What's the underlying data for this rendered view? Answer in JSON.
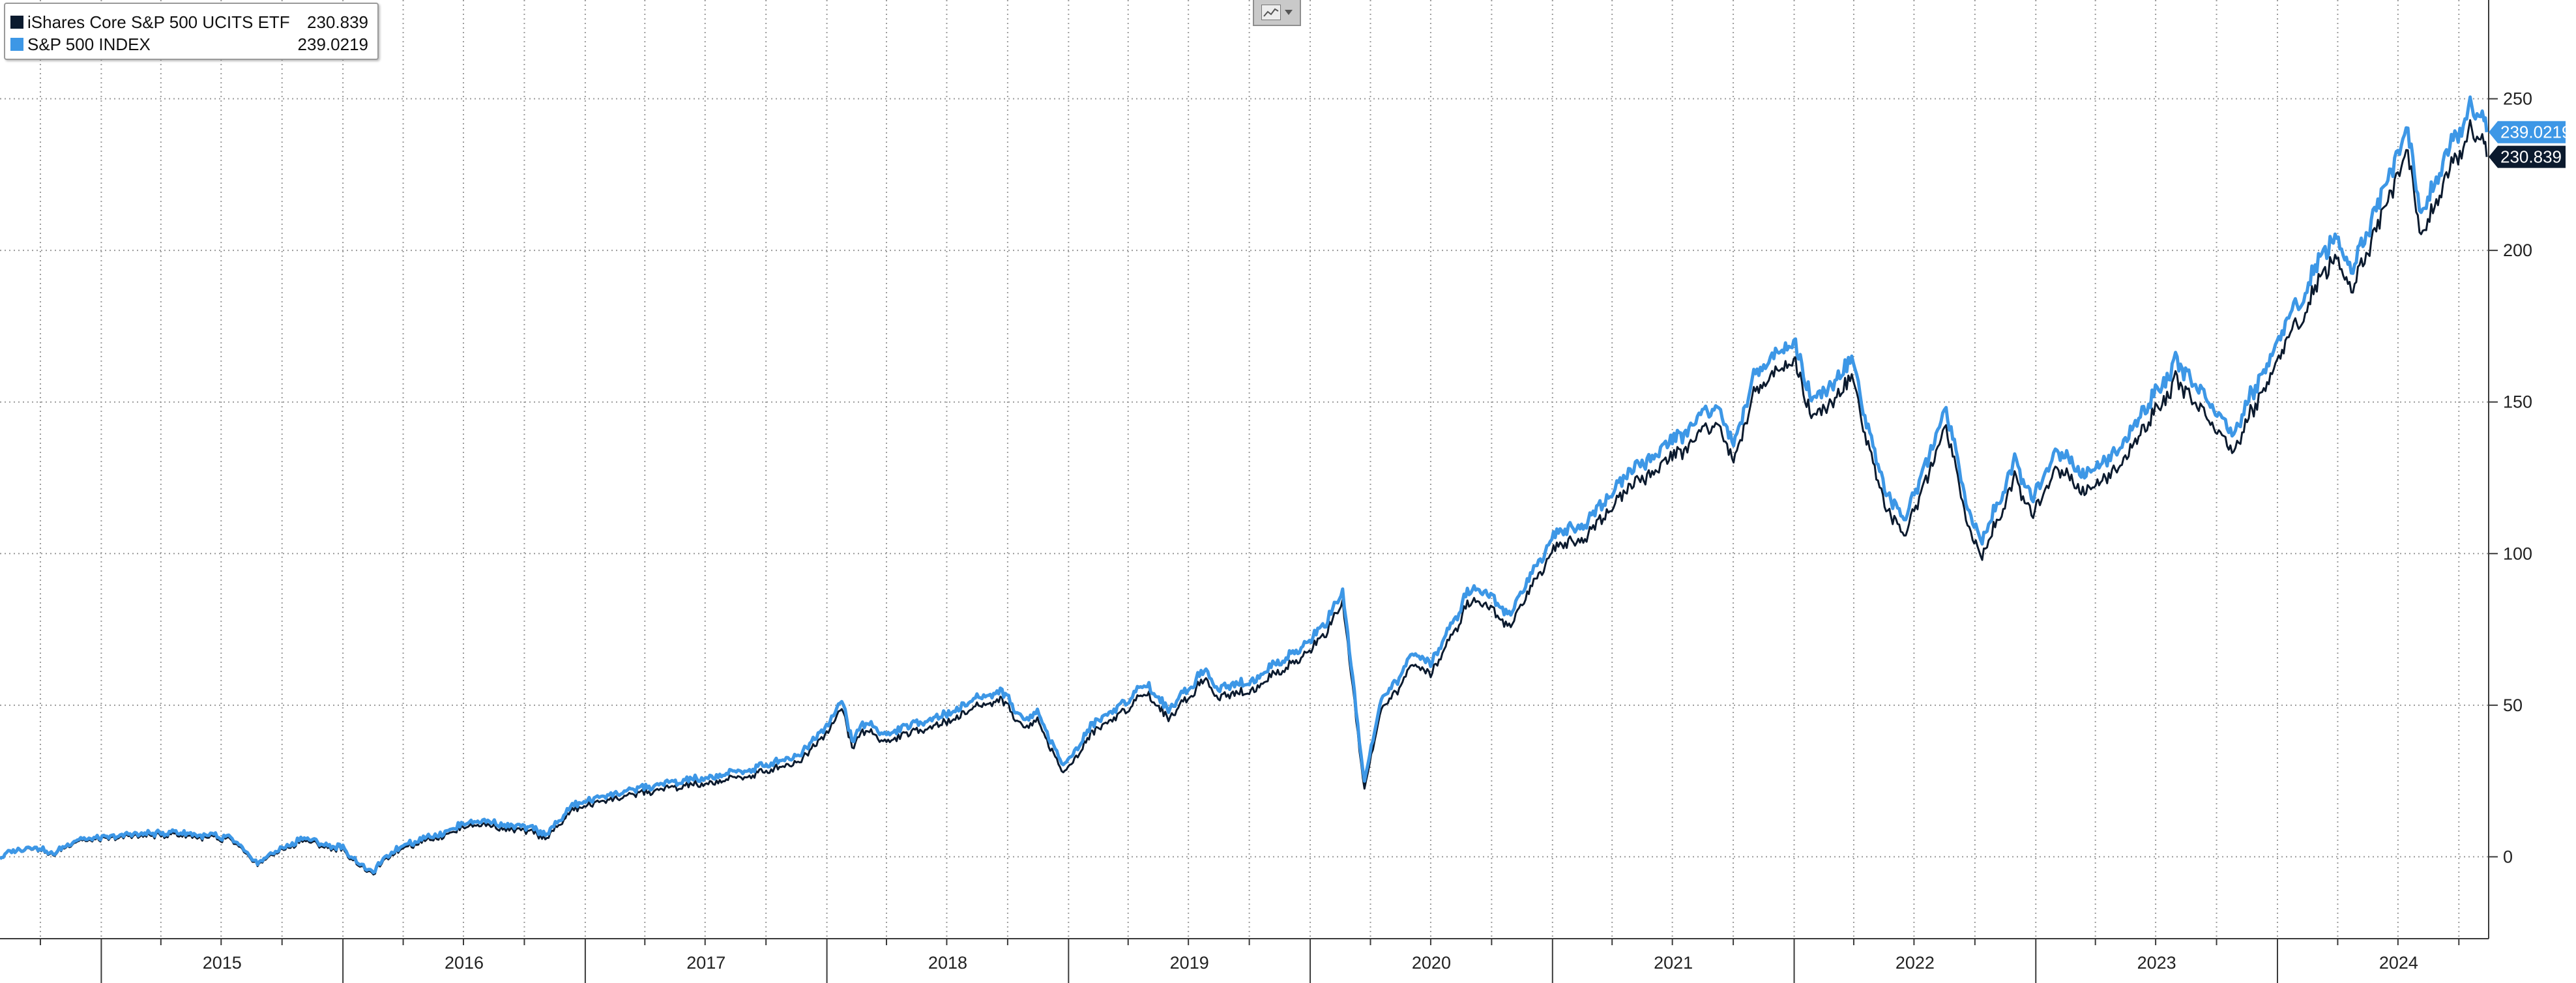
{
  "legend": {
    "items": [
      {
        "name": "iShares Core S&P 500 UCITS ETF",
        "value": "230.839",
        "color": "#0b1a2e"
      },
      {
        "name": "S&P 500 INDEX",
        "value": "239.0219",
        "color": "#3d97e6"
      }
    ]
  },
  "toolbar": {
    "chart_type_icon": "line-chart-icon",
    "dropdown_icon": "chevron-down-icon"
  },
  "chart_data": {
    "type": "line",
    "x_axis": {
      "type": "date",
      "range": [
        "2014-08-01",
        "2024-11-15"
      ],
      "tick_labels": [
        "2015",
        "2016",
        "2017",
        "2018",
        "2019",
        "2020",
        "2021",
        "2022",
        "2023",
        "2024"
      ]
    },
    "y_axis": {
      "side": "right",
      "range": [
        -27,
        280
      ],
      "ticks": [
        0,
        50,
        100,
        150,
        200,
        250
      ],
      "tick_labels": [
        "0",
        "50",
        "100",
        "150",
        "200",
        "250"
      ]
    },
    "grid": {
      "horizontal": true,
      "vertical": true,
      "style": "dotted"
    },
    "legend_position": "top-left",
    "series": [
      {
        "name": "S&P 500 INDEX",
        "color": "#3d97e6",
        "last_value_label": "239.0219",
        "points": [
          [
            "2014-08-01",
            0
          ],
          [
            "2014-09-15",
            4
          ],
          [
            "2014-10-15",
            1
          ],
          [
            "2014-12-01",
            6
          ],
          [
            "2015-02-01",
            7
          ],
          [
            "2015-05-01",
            8
          ],
          [
            "2015-07-15",
            6
          ],
          [
            "2015-08-25",
            -2
          ],
          [
            "2015-10-01",
            3
          ],
          [
            "2015-11-01",
            6
          ],
          [
            "2016-01-01",
            3
          ],
          [
            "2016-02-11",
            -5
          ],
          [
            "2016-04-01",
            4
          ],
          [
            "2016-06-01",
            8
          ],
          [
            "2016-07-15",
            12
          ],
          [
            "2016-10-01",
            10
          ],
          [
            "2016-11-04",
            8
          ],
          [
            "2016-12-15",
            17
          ],
          [
            "2017-03-01",
            22
          ],
          [
            "2017-06-01",
            25
          ],
          [
            "2017-09-01",
            28
          ],
          [
            "2017-12-01",
            35
          ],
          [
            "2018-01-26",
            52
          ],
          [
            "2018-02-08",
            38
          ],
          [
            "2018-03-01",
            45
          ],
          [
            "2018-04-01",
            40
          ],
          [
            "2018-06-01",
            45
          ],
          [
            "2018-09-20",
            55
          ],
          [
            "2018-10-25",
            45
          ],
          [
            "2018-11-15",
            48
          ],
          [
            "2018-12-24",
            30
          ],
          [
            "2019-02-01",
            42
          ],
          [
            "2019-04-30",
            57
          ],
          [
            "2019-06-01",
            48
          ],
          [
            "2019-07-25",
            62
          ],
          [
            "2019-08-15",
            55
          ],
          [
            "2019-10-01",
            58
          ],
          [
            "2019-12-31",
            70
          ],
          [
            "2020-02-19",
            86
          ],
          [
            "2020-03-23",
            25
          ],
          [
            "2020-04-15",
            50
          ],
          [
            "2020-06-08",
            68
          ],
          [
            "2020-07-01",
            64
          ],
          [
            "2020-09-02",
            90
          ],
          [
            "2020-10-30",
            80
          ],
          [
            "2020-12-31",
            105
          ],
          [
            "2021-03-01",
            112
          ],
          [
            "2021-05-01",
            128
          ],
          [
            "2021-07-01",
            137
          ],
          [
            "2021-09-02",
            148
          ],
          [
            "2021-10-04",
            137
          ],
          [
            "2021-11-01",
            160
          ],
          [
            "2022-01-03",
            170
          ],
          [
            "2022-01-27",
            150
          ],
          [
            "2022-03-29",
            163
          ],
          [
            "2022-05-20",
            120
          ],
          [
            "2022-06-16",
            110
          ],
          [
            "2022-08-16",
            148
          ],
          [
            "2022-09-30",
            108
          ],
          [
            "2022-10-12",
            105
          ],
          [
            "2022-11-30",
            130
          ],
          [
            "2022-12-28",
            118
          ],
          [
            "2023-02-02",
            135
          ],
          [
            "2023-03-13",
            125
          ],
          [
            "2023-05-01",
            133
          ],
          [
            "2023-07-31",
            163
          ],
          [
            "2023-10-27",
            140
          ],
          [
            "2023-12-29",
            170
          ],
          [
            "2024-03-28",
            205
          ],
          [
            "2024-04-19",
            193
          ],
          [
            "2024-07-16",
            240
          ],
          [
            "2024-08-05",
            213
          ],
          [
            "2024-09-30",
            238
          ],
          [
            "2024-10-18",
            250
          ],
          [
            "2024-11-08",
            245
          ],
          [
            "2024-11-12",
            239
          ]
        ]
      },
      {
        "name": "iShares Core S&P 500 UCITS ETF",
        "color": "#0b1a2e",
        "last_value_label": "230.839",
        "points": [
          [
            "2014-08-01",
            0
          ],
          [
            "2014-09-15",
            3.7
          ],
          [
            "2014-10-15",
            0.6
          ],
          [
            "2014-12-01",
            5.5
          ],
          [
            "2015-02-01",
            6.4
          ],
          [
            "2015-05-01",
            7.2
          ],
          [
            "2015-07-15",
            5.3
          ],
          [
            "2015-08-25",
            -2.5
          ],
          [
            "2015-10-01",
            2.4
          ],
          [
            "2015-11-01",
            5.2
          ],
          [
            "2016-01-01",
            2.3
          ],
          [
            "2016-02-11",
            -5.6
          ],
          [
            "2016-04-01",
            3.2
          ],
          [
            "2016-06-01",
            7
          ],
          [
            "2016-07-15",
            10.8
          ],
          [
            "2016-10-01",
            8.7
          ],
          [
            "2016-11-04",
            6.7
          ],
          [
            "2016-12-15",
            15.5
          ],
          [
            "2017-03-01",
            20.4
          ],
          [
            "2017-06-01",
            23.2
          ],
          [
            "2017-09-01",
            26
          ],
          [
            "2017-12-01",
            32.8
          ],
          [
            "2018-01-26",
            49.5
          ],
          [
            "2018-02-08",
            35.8
          ],
          [
            "2018-03-01",
            42.5
          ],
          [
            "2018-04-01",
            37.6
          ],
          [
            "2018-06-01",
            42.4
          ],
          [
            "2018-09-20",
            52.2
          ],
          [
            "2018-10-25",
            42.4
          ],
          [
            "2018-11-15",
            45.3
          ],
          [
            "2018-12-24",
            27.5
          ],
          [
            "2019-02-01",
            39.4
          ],
          [
            "2019-04-30",
            54.1
          ],
          [
            "2019-06-01",
            45.1
          ],
          [
            "2019-07-25",
            59
          ],
          [
            "2019-08-15",
            52.1
          ],
          [
            "2019-10-01",
            54.9
          ],
          [
            "2019-12-31",
            66.7
          ],
          [
            "2020-02-19",
            82.5
          ],
          [
            "2020-03-23",
            22.5
          ],
          [
            "2020-04-15",
            46.8
          ],
          [
            "2020-06-08",
            64.4
          ],
          [
            "2020-07-01",
            60.4
          ],
          [
            "2020-09-02",
            86
          ],
          [
            "2020-10-30",
            76
          ],
          [
            "2020-12-31",
            100.6
          ],
          [
            "2021-03-01",
            107.4
          ],
          [
            "2021-05-01",
            123
          ],
          [
            "2021-07-01",
            131.6
          ],
          [
            "2021-09-02",
            142.4
          ],
          [
            "2021-10-04",
            131.4
          ],
          [
            "2021-11-01",
            154.2
          ],
          [
            "2022-01-03",
            164
          ],
          [
            "2022-01-27",
            144.3
          ],
          [
            "2022-03-29",
            157.1
          ],
          [
            "2022-05-20",
            114.8
          ],
          [
            "2022-06-16",
            104.8
          ],
          [
            "2022-08-16",
            142.2
          ],
          [
            "2022-09-30",
            102.7
          ],
          [
            "2022-10-12",
            99.7
          ],
          [
            "2022-11-30",
            124.4
          ],
          [
            "2022-12-28",
            112.6
          ],
          [
            "2023-02-02",
            129.2
          ],
          [
            "2023-03-13",
            119.3
          ],
          [
            "2023-05-01",
            127.2
          ],
          [
            "2023-07-31",
            156.9
          ],
          [
            "2023-10-27",
            134.3
          ],
          [
            "2023-12-29",
            163.8
          ],
          [
            "2024-03-28",
            198.2
          ],
          [
            "2024-04-19",
            186.6
          ],
          [
            "2024-07-16",
            232.7
          ],
          [
            "2024-08-05",
            205.8
          ],
          [
            "2024-09-30",
            230.6
          ],
          [
            "2024-10-18",
            242.4
          ],
          [
            "2024-11-08",
            237.4
          ],
          [
            "2024-11-12",
            230.839
          ]
        ]
      }
    ]
  }
}
